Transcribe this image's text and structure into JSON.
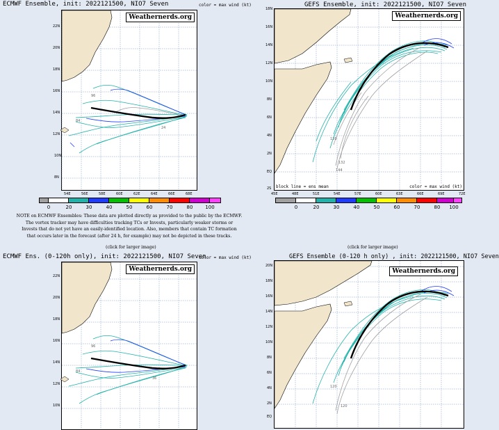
{
  "colorbar": {
    "values": [
      "0",
      "20",
      "30",
      "40",
      "50",
      "60",
      "70",
      "80",
      "100"
    ],
    "colors": [
      "#a0a0a0",
      "#ffffff",
      "#20b2aa",
      "#1e3cff",
      "#00c000",
      "#ffff00",
      "#ff8c00",
      "#ff0000",
      "#d000d0",
      "#ff40ff"
    ]
  },
  "panels": [
    {
      "title": "ECMWF Ensemble, init: 2022121500, NIO7 Seven",
      "color_note": "color = max wind (kt)",
      "brand": "Weathernerds.org",
      "lat_labels": [
        "22N",
        "20N",
        "18N",
        "16N",
        "14N",
        "12N",
        "10N",
        "8N"
      ],
      "lon_labels": [
        "54E",
        "56E",
        "58E",
        "60E",
        "62E",
        "64E",
        "66E",
        "68E"
      ],
      "track_labels": [
        "96",
        "84",
        "24"
      ]
    },
    {
      "title": "GEFS Ensemble, init: 2022121500, NIO7 Seven",
      "brand": "Weathernerds.org",
      "lat_labels": [
        "18N",
        "16N",
        "14N",
        "12N",
        "10N",
        "8N",
        "6N",
        "4N",
        "2N",
        "EQ",
        "2S"
      ],
      "lon_labels": [
        "45E",
        "48E",
        "51E",
        "54E",
        "57E",
        "60E",
        "63E",
        "66E",
        "69E",
        "72E"
      ],
      "legend_left": "block line = ens mean",
      "legend_right": "color = max wind (kt)",
      "track_labels": [
        "120",
        "132",
        "144"
      ]
    },
    {
      "title": "ECMWF Ens. (0-120h only), init: 2022121500, NIO7 Seven",
      "color_note": "color = max wind (kt)",
      "brand": "Weathernerds.org",
      "lat_labels": [
        "22N",
        "20N",
        "18N",
        "16N",
        "14N",
        "12N",
        "10N"
      ],
      "track_labels": [
        "96",
        "84",
        "36"
      ]
    },
    {
      "title": "GEFS Ensemble (0-120 h only) , init: 2022121500, NIO7 Seven",
      "brand": "Weathernerds.org",
      "lat_labels": [
        "20N",
        "18N",
        "16N",
        "14N",
        "12N",
        "10N",
        "8N",
        "6N",
        "4N",
        "2N",
        "EQ"
      ],
      "track_labels": [
        "120",
        "120"
      ]
    }
  ],
  "note": "NOTE on ECMWF Ensembles: These data are plotted directly as provided to the public by the ECMWF. The vortex tracker may have difficulties tracking TCs or Invests, particularly weaker storms or Invests that do not yet have an easily-identified location. Also, members that contain TC formation that occurs later in the forecast (after 24 h, for example) may not be depicted in these tracks.",
  "note_lines": [
    "NOTE on ECMWF Ensembles: These data are plotted directly as provided to the public by the ECMWF.",
    "The vortex tracker may have difficulties tracking TCs or Invests, particularly weaker storms or",
    "Invests that do not yet have an easily-identified location. Also, members that contain TC formation",
    "that occurs later in the forecast (after 24 h, for example) may not be depicted in these tracks."
  ],
  "click_left": "(click for larger image)",
  "click_right": "(click for larger image)"
}
